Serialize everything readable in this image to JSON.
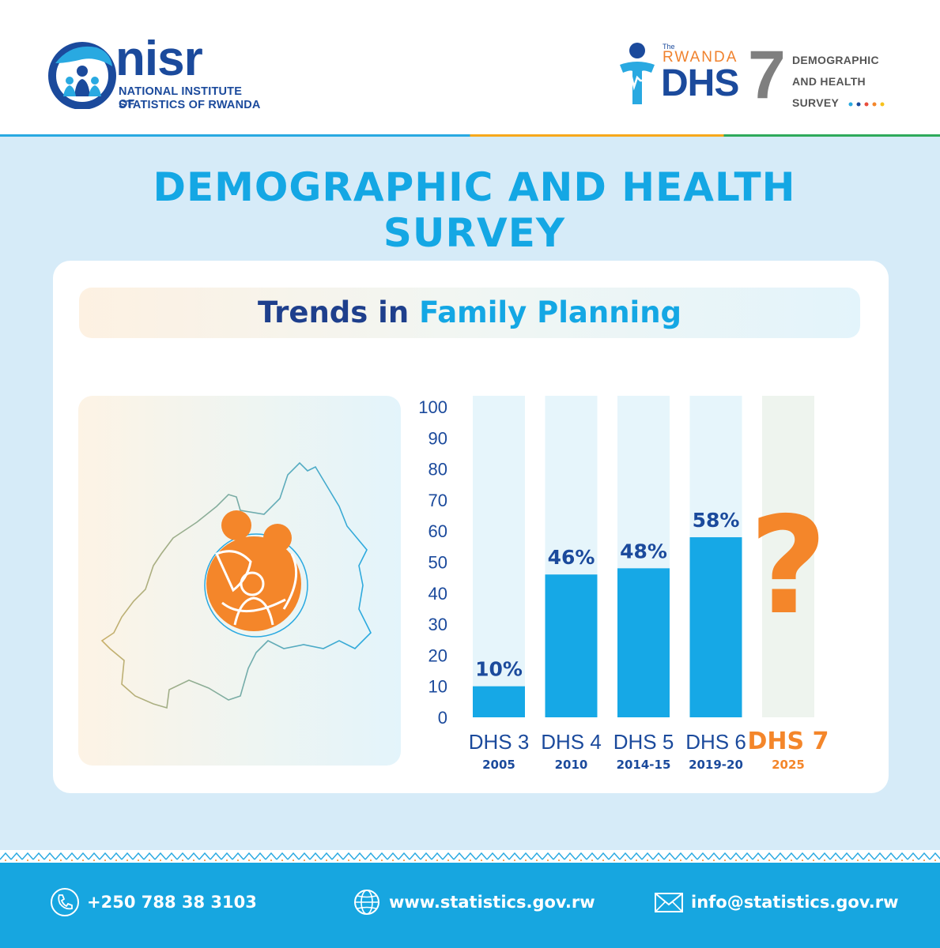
{
  "header": {
    "nisr": {
      "word": "nisr",
      "name_line1": "NATIONAL INSTITUTE OF",
      "name_line2": "STATISTICS OF RWANDA"
    },
    "dhs": {
      "the": "The",
      "rwanda": "RWANDA",
      "word": "DHS",
      "number": "7",
      "text_line1": "DEMOGRAPHIC",
      "text_line2": "AND HEALTH",
      "text_line3": "SURVEY"
    }
  },
  "title": {
    "line1": "DEMOGRAPHIC AND HEALTH",
    "line2": "SURVEY"
  },
  "banner": {
    "part1": "Trends in ",
    "part2": "Family Planning"
  },
  "chart_data": {
    "type": "bar",
    "categories": [
      "DHS 3",
      "DHS 4",
      "DHS 5",
      "DHS 6",
      "DHS 7"
    ],
    "years": [
      "2005",
      "2010",
      "2014-15",
      "2019-20",
      "2025"
    ],
    "values": [
      10,
      46,
      48,
      58,
      null
    ],
    "data_labels": [
      "10%",
      "46%",
      "48%",
      "58%",
      "?"
    ],
    "yticks": [
      0,
      10,
      20,
      30,
      40,
      50,
      60,
      70,
      80,
      90,
      100
    ],
    "ylim": [
      0,
      100
    ],
    "bar_color": "#16a8e6",
    "track_color": "#e6f5fb",
    "label_color": "#1b4a9c",
    "highlight_color": "#f4862a"
  },
  "footer": {
    "phone": "+250 788 38 3103",
    "website": "www.statistics.gov.rw",
    "email": "info@statistics.gov.rw"
  },
  "colors": {
    "brand_blue": "#14a7e4",
    "navy": "#1b4a9c",
    "orange": "#f4862a",
    "background": "#d6ebf8"
  }
}
